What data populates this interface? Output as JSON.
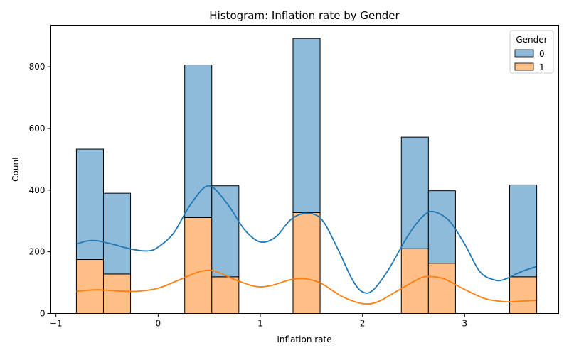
{
  "chart_data": {
    "type": "bar",
    "title": "Histogram: Inflation rate by Gender",
    "xlabel": "Inflation rate",
    "ylabel": "Count",
    "xlim": [
      -1.05,
      3.92
    ],
    "ylim": [
      0,
      935
    ],
    "xticks": [
      -1,
      0,
      1,
      2,
      3
    ],
    "yticks": [
      0,
      200,
      400,
      600,
      800
    ],
    "stacked": true,
    "grid": false,
    "legend": {
      "title": "Gender",
      "position": "top-right"
    },
    "series": [
      {
        "name": "0",
        "color": "#1f77b4",
        "bins": [
          {
            "x0": -0.8,
            "x1": -0.535,
            "value": 358
          },
          {
            "x0": -0.535,
            "x1": -0.27,
            "value": 262
          },
          {
            "x0": 0.26,
            "x1": 0.525,
            "value": 495
          },
          {
            "x0": 0.525,
            "x1": 0.79,
            "value": 295
          },
          {
            "x0": 1.32,
            "x1": 1.585,
            "value": 565
          },
          {
            "x0": 2.38,
            "x1": 2.645,
            "value": 362
          },
          {
            "x0": 2.645,
            "x1": 2.91,
            "value": 235
          },
          {
            "x0": 3.44,
            "x1": 3.705,
            "value": 298
          }
        ],
        "kde": [
          [
            -0.8,
            225
          ],
          [
            -0.7,
            235
          ],
          [
            -0.6,
            236
          ],
          [
            -0.45,
            225
          ],
          [
            -0.25,
            208
          ],
          [
            -0.1,
            203
          ],
          [
            0.0,
            215
          ],
          [
            0.15,
            260
          ],
          [
            0.3,
            345
          ],
          [
            0.45,
            408
          ],
          [
            0.55,
            405
          ],
          [
            0.7,
            345
          ],
          [
            0.85,
            270
          ],
          [
            1.0,
            232
          ],
          [
            1.15,
            248
          ],
          [
            1.3,
            305
          ],
          [
            1.45,
            325
          ],
          [
            1.6,
            305
          ],
          [
            1.75,
            215
          ],
          [
            1.9,
            110
          ],
          [
            2.0,
            70
          ],
          [
            2.1,
            75
          ],
          [
            2.25,
            140
          ],
          [
            2.45,
            255
          ],
          [
            2.6,
            318
          ],
          [
            2.7,
            330
          ],
          [
            2.85,
            300
          ],
          [
            3.0,
            225
          ],
          [
            3.15,
            135
          ],
          [
            3.3,
            108
          ],
          [
            3.4,
            112
          ],
          [
            3.55,
            135
          ],
          [
            3.7,
            152
          ]
        ]
      },
      {
        "name": "1",
        "color": "#ff7f0e",
        "bins": [
          {
            "x0": -0.8,
            "x1": -0.535,
            "value": 175
          },
          {
            "x0": -0.535,
            "x1": -0.27,
            "value": 128
          },
          {
            "x0": 0.26,
            "x1": 0.525,
            "value": 311
          },
          {
            "x0": 0.525,
            "x1": 0.79,
            "value": 119
          },
          {
            "x0": 1.32,
            "x1": 1.585,
            "value": 327
          },
          {
            "x0": 2.38,
            "x1": 2.645,
            "value": 210
          },
          {
            "x0": 2.645,
            "x1": 2.91,
            "value": 163
          },
          {
            "x0": 3.44,
            "x1": 3.705,
            "value": 119
          }
        ],
        "kde": [
          [
            -0.8,
            72
          ],
          [
            -0.6,
            77
          ],
          [
            -0.4,
            73
          ],
          [
            -0.2,
            72
          ],
          [
            0.0,
            82
          ],
          [
            0.2,
            108
          ],
          [
            0.4,
            135
          ],
          [
            0.55,
            138
          ],
          [
            0.75,
            110
          ],
          [
            0.95,
            88
          ],
          [
            1.1,
            90
          ],
          [
            1.3,
            110
          ],
          [
            1.45,
            112
          ],
          [
            1.6,
            97
          ],
          [
            1.8,
            55
          ],
          [
            2.0,
            32
          ],
          [
            2.15,
            38
          ],
          [
            2.35,
            75
          ],
          [
            2.55,
            112
          ],
          [
            2.65,
            120
          ],
          [
            2.8,
            112
          ],
          [
            3.0,
            78
          ],
          [
            3.2,
            48
          ],
          [
            3.4,
            38
          ],
          [
            3.55,
            40
          ],
          [
            3.7,
            42
          ]
        ]
      }
    ]
  }
}
